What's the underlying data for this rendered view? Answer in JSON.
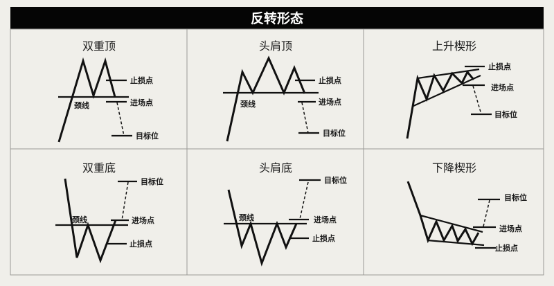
{
  "title": "反转形态",
  "panels": [
    {
      "title": "双重顶",
      "stop": "止损点",
      "entry": "进场点",
      "target": "目标位",
      "neck": "颈线"
    },
    {
      "title": "头肩顶",
      "stop": "止损点",
      "entry": "进场点",
      "target": "目标位",
      "neck": "颈线"
    },
    {
      "title": "上升楔形",
      "stop": "止损点",
      "entry": "进场点",
      "target": "目标位"
    },
    {
      "title": "双重底",
      "stop": "止损点",
      "entry": "进场点",
      "target": "目标位",
      "neck": "颈线"
    },
    {
      "title": "头肩底",
      "stop": "止损点",
      "entry": "进场点",
      "target": "目标位",
      "neck": "颈线"
    },
    {
      "title": "下降楔形",
      "stop": "止损点",
      "entry": "进场点",
      "target": "目标位"
    }
  ]
}
